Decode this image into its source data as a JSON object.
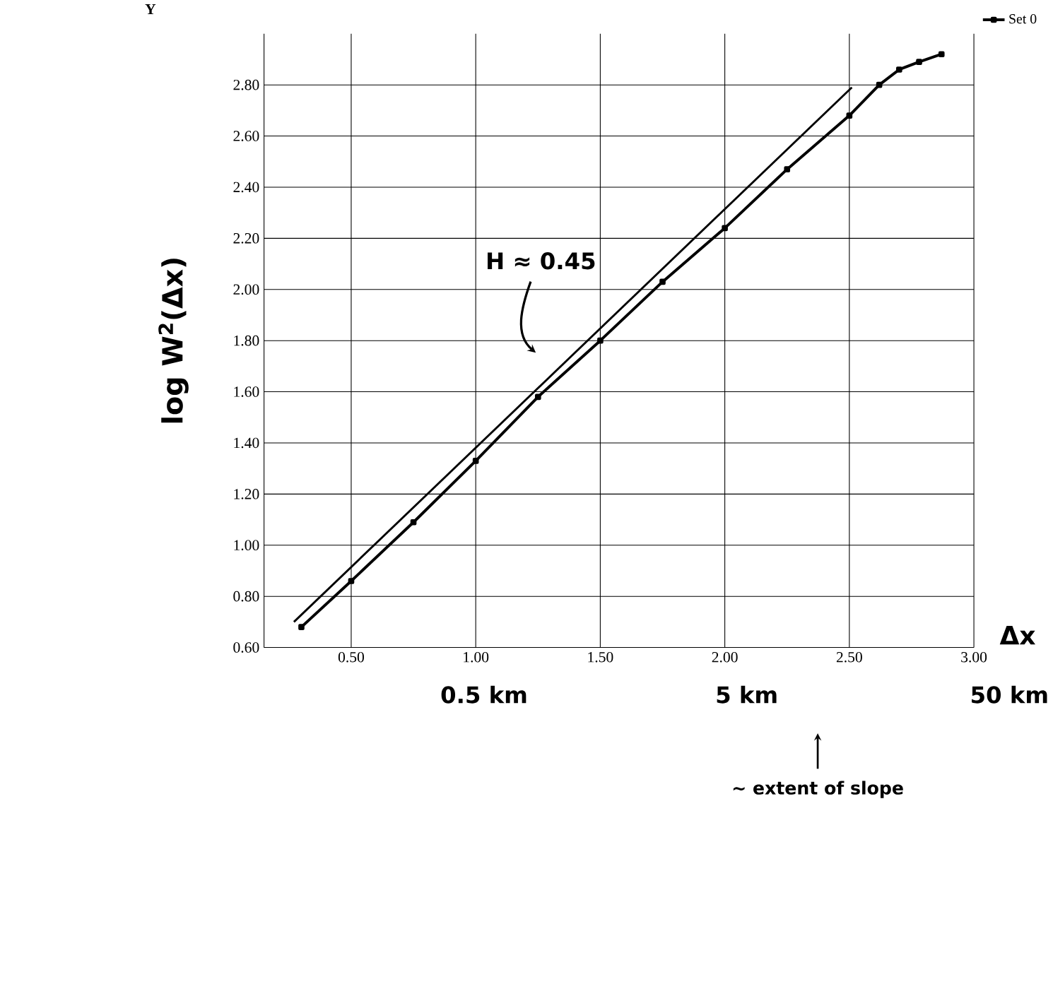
{
  "chart_data": {
    "type": "line",
    "xlabel": "Δx",
    "ylabel": "log W$^{2}$(Δx)",
    "annotations": [
      "Y",
      "H ≈ 0.45",
      "0.5 km",
      "5 km",
      "50 km",
      "~ extent of slope"
    ],
    "xlim": [
      0.15,
      3.0
    ],
    "ylim": [
      0.6,
      3.0
    ],
    "xticks": [
      {
        "value": 0.5,
        "label": "0.50"
      },
      {
        "value": 1.0,
        "label": "1.00"
      },
      {
        "value": 1.5,
        "label": "1.50"
      },
      {
        "value": 2.0,
        "label": "2.00"
      },
      {
        "value": 2.5,
        "label": "2.50"
      },
      {
        "value": 3.0,
        "label": "3.00"
      }
    ],
    "yticks": [
      {
        "value": 0.6,
        "label": "0.60"
      },
      {
        "value": 0.8,
        "label": "0.80"
      },
      {
        "value": 1.0,
        "label": "1.00"
      },
      {
        "value": 1.2,
        "label": "1.20"
      },
      {
        "value": 1.4,
        "label": "1.40"
      },
      {
        "value": 1.6,
        "label": "1.60"
      },
      {
        "value": 1.8,
        "label": "1.80"
      },
      {
        "value": 2.0,
        "label": "2.00"
      },
      {
        "value": 2.2,
        "label": "2.20"
      },
      {
        "value": 2.4,
        "label": "2.40"
      },
      {
        "value": 2.6,
        "label": "2.60"
      },
      {
        "value": 2.8,
        "label": "2.80"
      }
    ],
    "grid": true,
    "legend": "top right",
    "series": [
      {
        "name": "Set 0",
        "color": "#000000",
        "marker": "square",
        "x": [
          0.3,
          0.5,
          0.75,
          1.0,
          1.25,
          1.5,
          1.75,
          2.0,
          2.25,
          2.5,
          2.62,
          2.7,
          2.78,
          2.87
        ],
        "values": [
          0.68,
          0.86,
          1.09,
          1.33,
          1.58,
          1.8,
          2.03,
          2.24,
          2.47,
          2.68,
          2.8,
          2.86,
          2.89,
          2.92
        ]
      },
      {
        "color": "#000000",
        "x": [
          0.27,
          2.51
        ],
        "values": [
          0.7,
          2.79
        ]
      }
    ]
  }
}
